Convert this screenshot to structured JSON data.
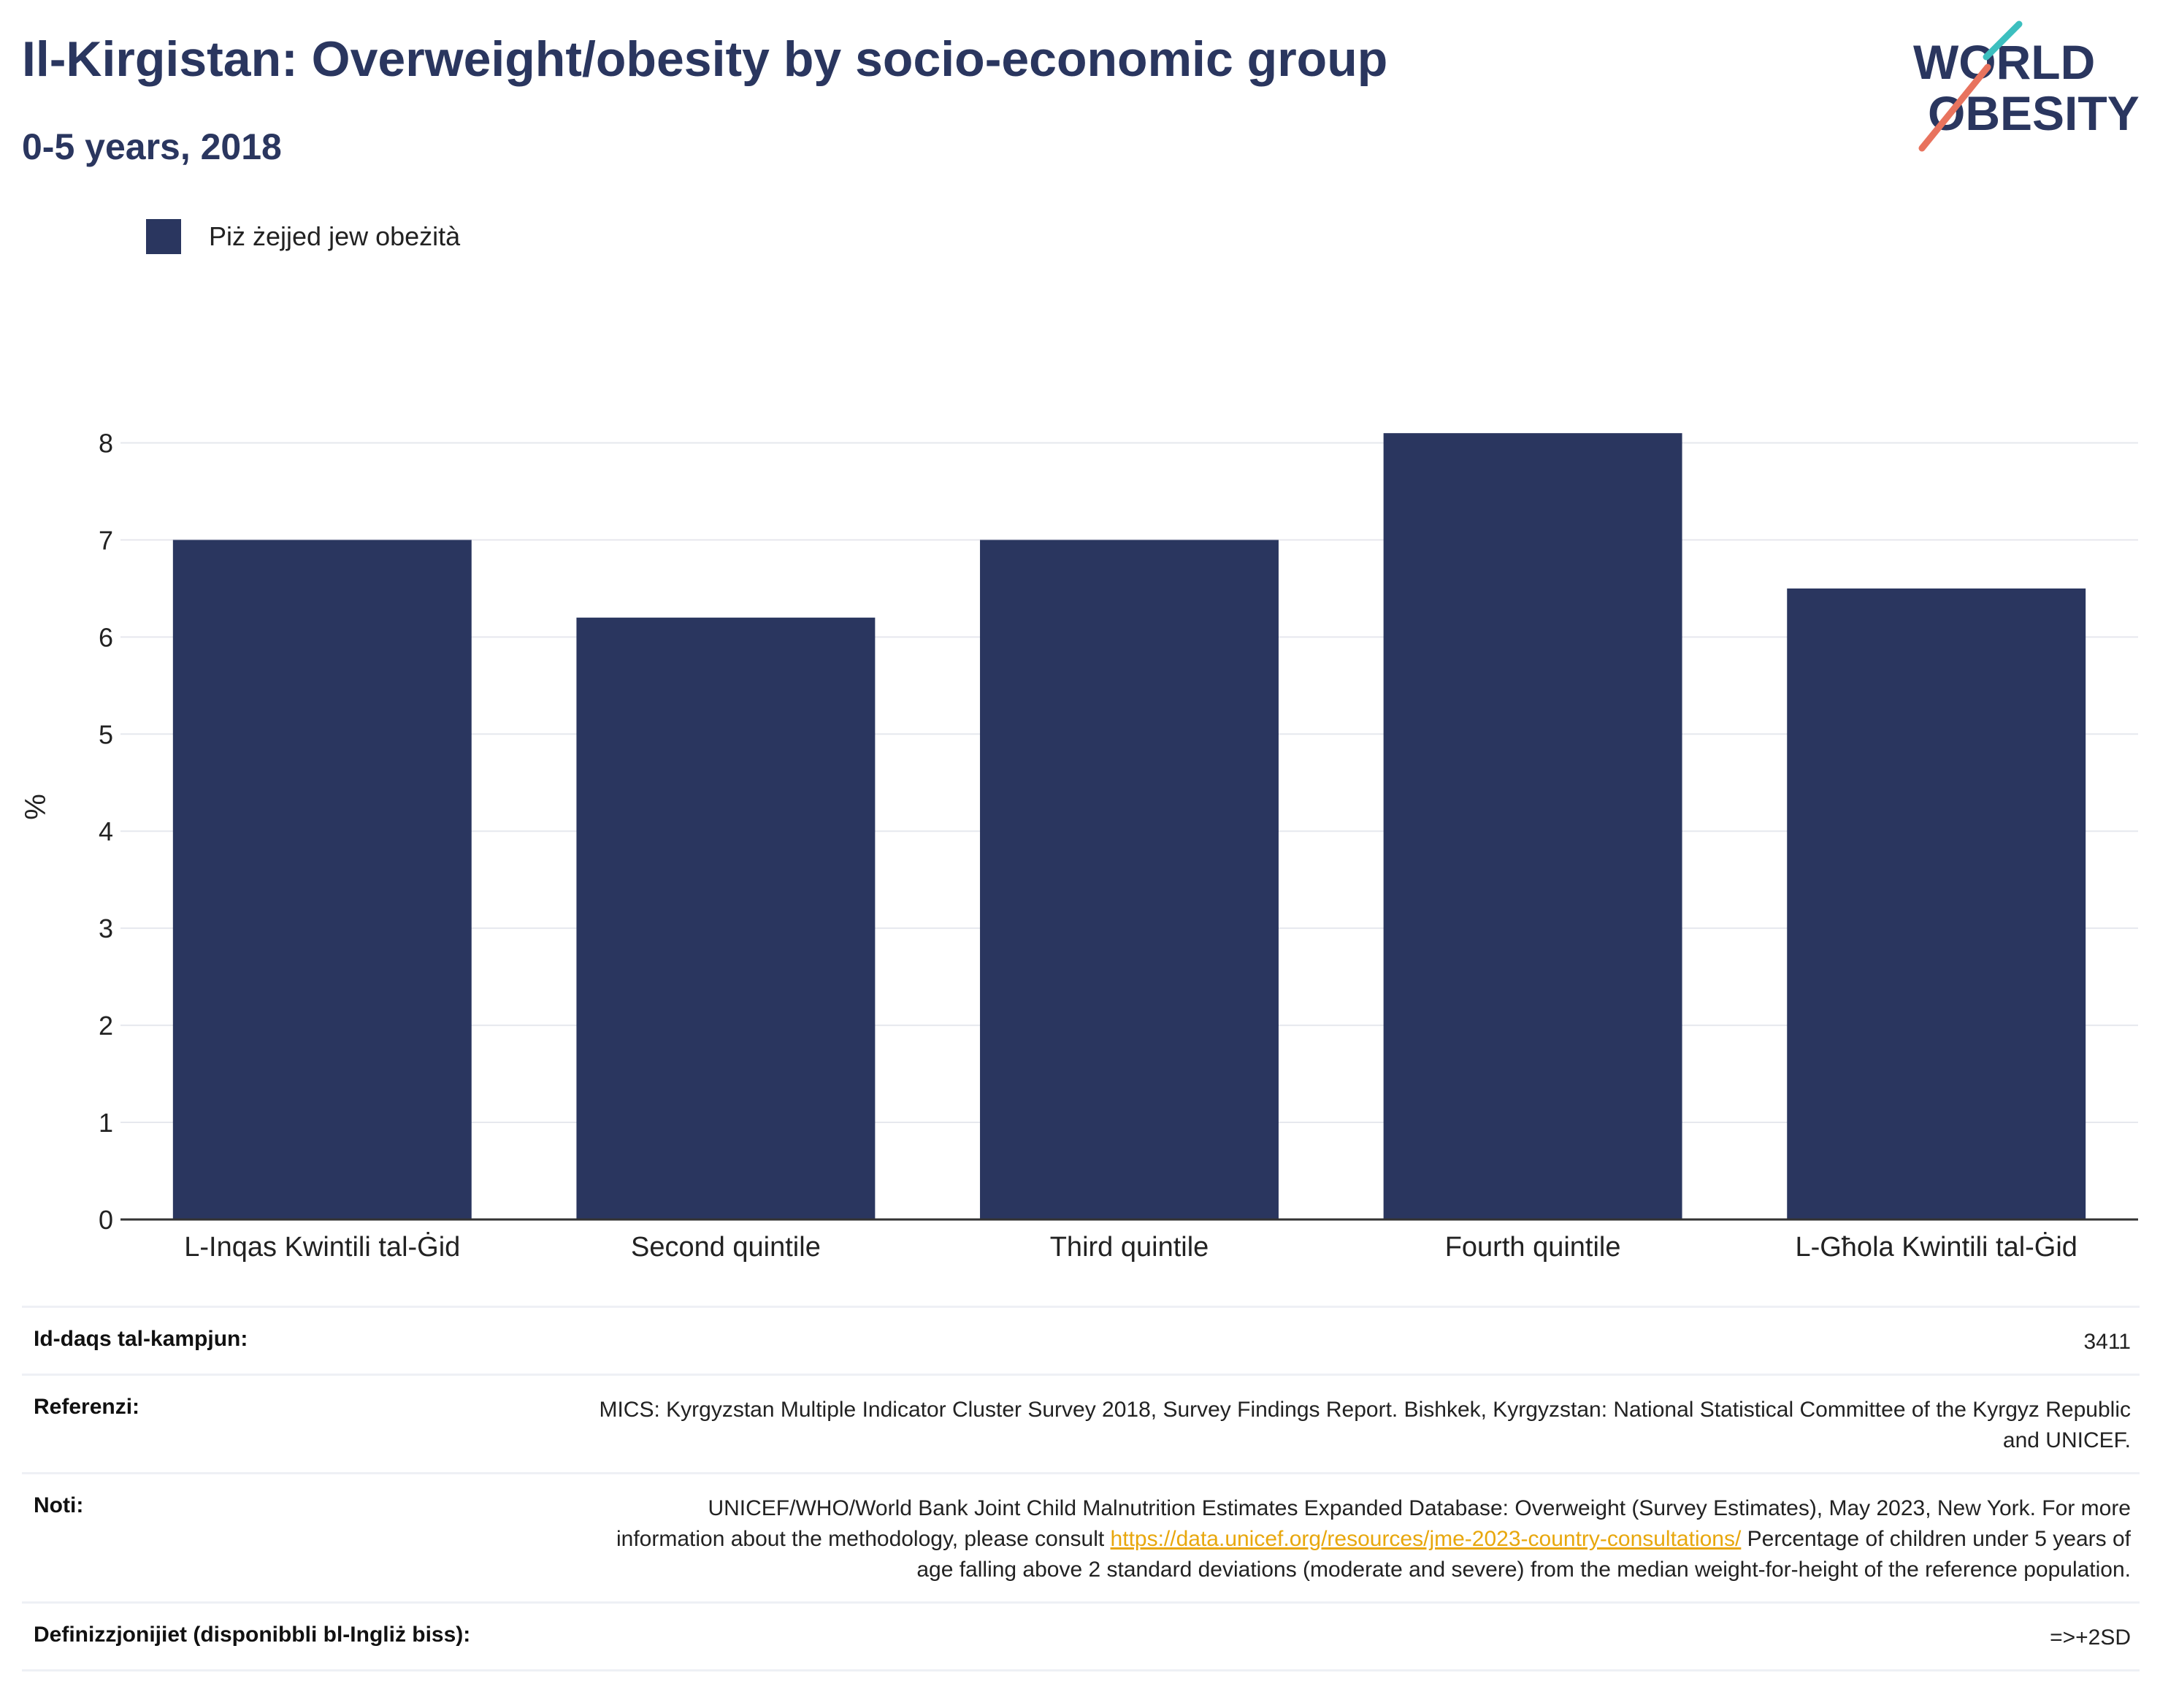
{
  "header": {
    "title": "Il-Kirgistan: Overweight/obesity by socio-economic group",
    "subtitle": "0-5 years, 2018"
  },
  "logo": {
    "line1": "WORLD",
    "line2": "OBESITY"
  },
  "colors": {
    "bar": "#2a365f",
    "grid": "#e6e8ee",
    "axis": "#333333",
    "accent_teal": "#3cbfbf",
    "accent_coral": "#e8735e",
    "link": "#e8a70c"
  },
  "chart_data": {
    "type": "bar",
    "categories": [
      "L-Inqas Kwintili tal-Ġid",
      "Second quintile",
      "Third quintile",
      "Fourth quintile",
      "L-Għola Kwintili tal-Ġid"
    ],
    "series": [
      {
        "name": "Piż żejjed jew obeżità",
        "values": [
          7.0,
          6.2,
          7.0,
          8.1,
          6.5
        ]
      }
    ],
    "ylabel": "%",
    "xlabel": "",
    "ylim": [
      0,
      8.5
    ],
    "yticks": [
      0,
      1,
      2,
      3,
      4,
      5,
      6,
      7,
      8
    ],
    "grid": true,
    "legend": "top-left"
  },
  "info": {
    "sample_size_label": "Id-daqs tal-kampjun:",
    "sample_size_value": "3411",
    "references_label": "Referenzi:",
    "references_value": "MICS: Kyrgyzstan Multiple Indicator Cluster Survey 2018, Survey Findings Report. Bishkek, Kyrgyzstan: National Statistical Committee of the Kyrgyz Republic and UNICEF.",
    "notes_label": "Noti:",
    "notes_text_1": "UNICEF/WHO/World Bank Joint Child Malnutrition Estimates Expanded Database: Overweight (Survey Estimates), May 2023, New York. For more information about the methodology, please consult",
    "notes_link": "https://data.unicef.org/resources/jme-2023-country-consultations/",
    "notes_text_2": "Percentage of children under 5 years of age falling above 2 standard deviations (moderate and severe) from the median weight-for-height of the reference population.",
    "definitions_label": "Definizzjonijiet (disponibbli bl-Ingliż biss):",
    "definitions_value": "=>+2SD"
  }
}
